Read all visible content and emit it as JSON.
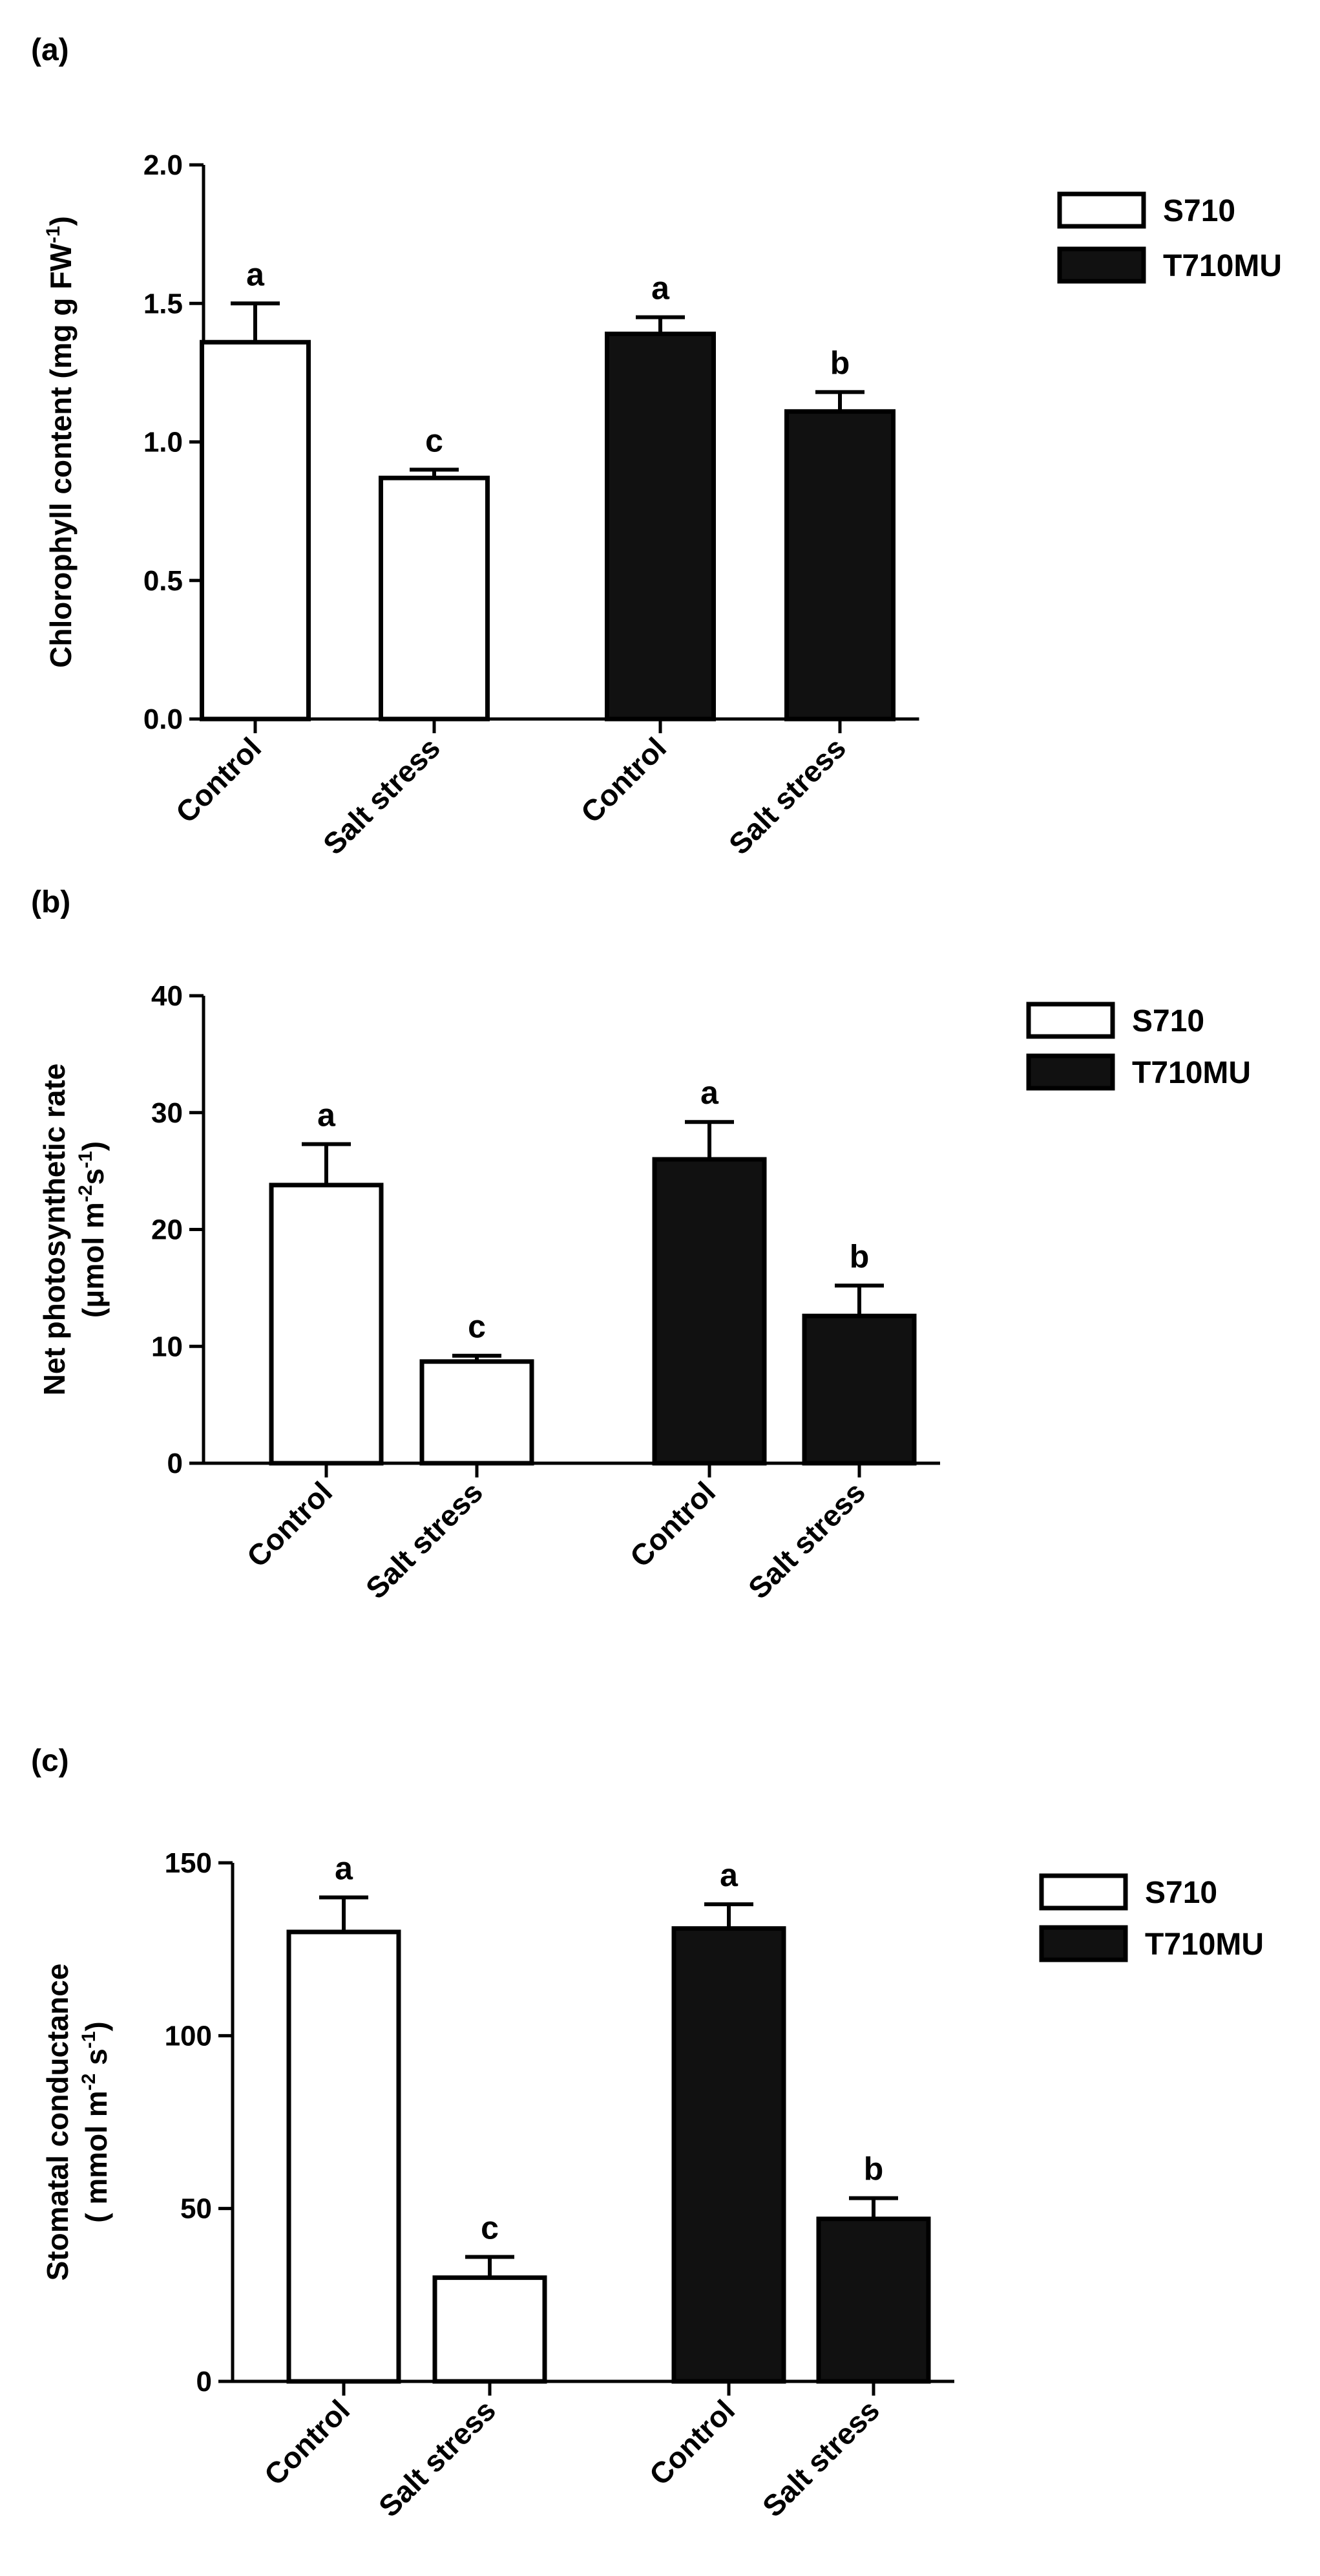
{
  "chart_data": [
    {
      "type": "bar",
      "panel_label": "(a)",
      "ylabel_lines": [
        "Chlorophyll content (mg g FW",
        "-1",
        ")"
      ],
      "ylim": [
        0,
        2.0
      ],
      "yticks": [
        0.0,
        0.5,
        1.0,
        1.5,
        2.0
      ],
      "ytick_labels": [
        "0.0",
        "0.5",
        "1.0",
        "1.5",
        "2.0"
      ],
      "categories": [
        "Control",
        "Salt stress",
        "Control",
        "Salt stress"
      ],
      "legend": [
        {
          "name": "S710",
          "fill": "#ffffff"
        },
        {
          "name": "T710MU",
          "fill": "#111111"
        }
      ],
      "bars": [
        {
          "group": "S710",
          "category": "Control",
          "value": 1.36,
          "error": 0.14,
          "letter": "a"
        },
        {
          "group": "S710",
          "category": "Salt stress",
          "value": 0.87,
          "error": 0.03,
          "letter": "c"
        },
        {
          "group": "T710MU",
          "category": "Control",
          "value": 1.39,
          "error": 0.06,
          "letter": "a"
        },
        {
          "group": "T710MU",
          "category": "Salt stress",
          "value": 1.11,
          "error": 0.07,
          "letter": "b"
        }
      ]
    },
    {
      "type": "bar",
      "panel_label": "(b)",
      "ylabel_lines": [
        "Net photosynthetic rate",
        "(μmol m",
        "-2",
        "s",
        "-1",
        ")"
      ],
      "ylim": [
        0,
        40
      ],
      "yticks": [
        0,
        10,
        20,
        30,
        40
      ],
      "ytick_labels": [
        "0",
        "10",
        "20",
        "30",
        "40"
      ],
      "categories": [
        "Control",
        "Salt stress",
        "Control",
        "Salt stress"
      ],
      "legend": [
        {
          "name": "S710",
          "fill": "#ffffff"
        },
        {
          "name": "T710MU",
          "fill": "#111111"
        }
      ],
      "bars": [
        {
          "group": "S710",
          "category": "Control",
          "value": 23.8,
          "error": 3.5,
          "letter": "a"
        },
        {
          "group": "S710",
          "category": "Salt stress",
          "value": 8.7,
          "error": 0.5,
          "letter": "c"
        },
        {
          "group": "T710MU",
          "category": "Control",
          "value": 26.0,
          "error": 3.2,
          "letter": "a"
        },
        {
          "group": "T710MU",
          "category": "Salt stress",
          "value": 12.6,
          "error": 2.6,
          "letter": "b"
        }
      ]
    },
    {
      "type": "bar",
      "panel_label": "(c)",
      "ylabel_lines": [
        "Stomatal conductance",
        "( mmol m",
        "-2",
        " s",
        "-1",
        ")"
      ],
      "ylim": [
        0,
        150
      ],
      "yticks": [
        0,
        50,
        100,
        150
      ],
      "ytick_labels": [
        "0",
        "50",
        "100",
        "150"
      ],
      "categories": [
        "Control",
        "Salt stress",
        "Control",
        "Salt stress"
      ],
      "legend": [
        {
          "name": "S710",
          "fill": "#ffffff"
        },
        {
          "name": "T710MU",
          "fill": "#111111"
        }
      ],
      "bars": [
        {
          "group": "S710",
          "category": "Control",
          "value": 130,
          "error": 10,
          "letter": "a"
        },
        {
          "group": "S710",
          "category": "Salt stress",
          "value": 30,
          "error": 6,
          "letter": "c"
        },
        {
          "group": "T710MU",
          "category": "Control",
          "value": 131,
          "error": 7,
          "letter": "a"
        },
        {
          "group": "T710MU",
          "category": "Salt stress",
          "value": 47,
          "error": 6,
          "letter": "b"
        }
      ]
    }
  ]
}
